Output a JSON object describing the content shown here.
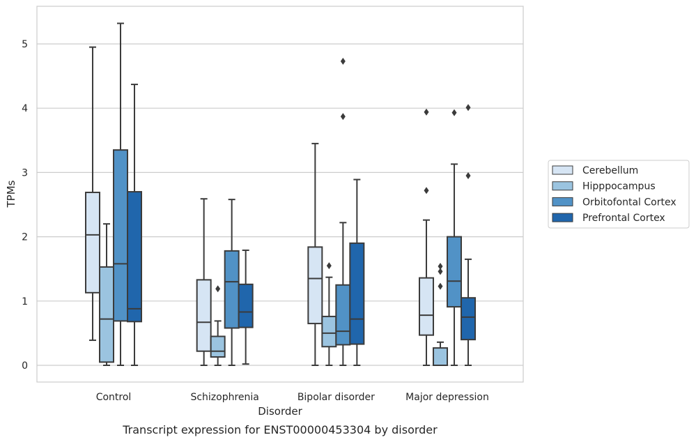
{
  "caption": "Transcript expression for ENST00000453304 by disorder",
  "chart_data": {
    "type": "boxplot",
    "xlabel": "Disorder",
    "ylabel": "TPMs",
    "ylim": [
      -0.25,
      5.6
    ],
    "yticks": [
      0,
      1,
      2,
      3,
      4,
      5
    ],
    "grid": "horizontal",
    "legend_position": "right",
    "categories": [
      "Control",
      "Schizophrenia",
      "Bipolar disorder",
      "Major depression"
    ],
    "series": [
      {
        "name": "Cerebellum",
        "color": "#d6e5f4",
        "boxes": [
          {
            "whislo": 0.39,
            "q1": 1.13,
            "med": 2.03,
            "q3": 2.69,
            "whishi": 4.95,
            "fliers": []
          },
          {
            "whislo": 0.0,
            "q1": 0.22,
            "med": 0.67,
            "q3": 1.33,
            "whishi": 2.59,
            "fliers": []
          },
          {
            "whislo": 0.0,
            "q1": 0.65,
            "med": 1.35,
            "q3": 1.84,
            "whishi": 3.45,
            "fliers": []
          },
          {
            "whislo": 0.0,
            "q1": 0.47,
            "med": 0.78,
            "q3": 1.36,
            "whishi": 2.26,
            "fliers": [
              2.72,
              3.94
            ]
          }
        ]
      },
      {
        "name": "Hipppocampus",
        "color": "#9bc4e0",
        "boxes": [
          {
            "whislo": 0.0,
            "q1": 0.05,
            "med": 0.72,
            "q3": 1.53,
            "whishi": 2.2,
            "fliers": []
          },
          {
            "whislo": 0.0,
            "q1": 0.13,
            "med": 0.22,
            "q3": 0.45,
            "whishi": 0.69,
            "fliers": [
              1.19
            ]
          },
          {
            "whislo": 0.0,
            "q1": 0.29,
            "med": 0.5,
            "q3": 0.76,
            "whishi": 1.37,
            "fliers": [
              1.55
            ]
          },
          {
            "whislo": 0.0,
            "q1": 0.0,
            "med": 0.0,
            "q3": 0.27,
            "whishi": 0.36,
            "fliers": [
              1.23,
              1.46,
              1.54
            ]
          }
        ]
      },
      {
        "name": "Orbitofontal Cortex",
        "color": "#5192c6",
        "boxes": [
          {
            "whislo": 0.0,
            "q1": 0.69,
            "med": 1.58,
            "q3": 3.35,
            "whishi": 5.32,
            "fliers": []
          },
          {
            "whislo": 0.0,
            "q1": 0.58,
            "med": 1.3,
            "q3": 1.78,
            "whishi": 2.58,
            "fliers": []
          },
          {
            "whislo": 0.0,
            "q1": 0.32,
            "med": 0.53,
            "q3": 1.25,
            "whishi": 2.22,
            "fliers": [
              3.87,
              4.73
            ]
          },
          {
            "whislo": 0.0,
            "q1": 0.91,
            "med": 1.31,
            "q3": 2.0,
            "whishi": 3.13,
            "fliers": [
              3.93
            ]
          }
        ]
      },
      {
        "name": "Prefrontal Cortex",
        "color": "#2066ac",
        "boxes": [
          {
            "whislo": 0.0,
            "q1": 0.68,
            "med": 0.88,
            "q3": 2.7,
            "whishi": 4.37,
            "fliers": []
          },
          {
            "whislo": 0.02,
            "q1": 0.59,
            "med": 0.83,
            "q3": 1.26,
            "whishi": 1.79,
            "fliers": []
          },
          {
            "whislo": 0.0,
            "q1": 0.33,
            "med": 0.72,
            "q3": 1.9,
            "whishi": 2.89,
            "fliers": []
          },
          {
            "whislo": 0.0,
            "q1": 0.4,
            "med": 0.75,
            "q3": 1.05,
            "whishi": 1.65,
            "fliers": [
              2.95,
              4.01
            ]
          }
        ]
      }
    ]
  }
}
